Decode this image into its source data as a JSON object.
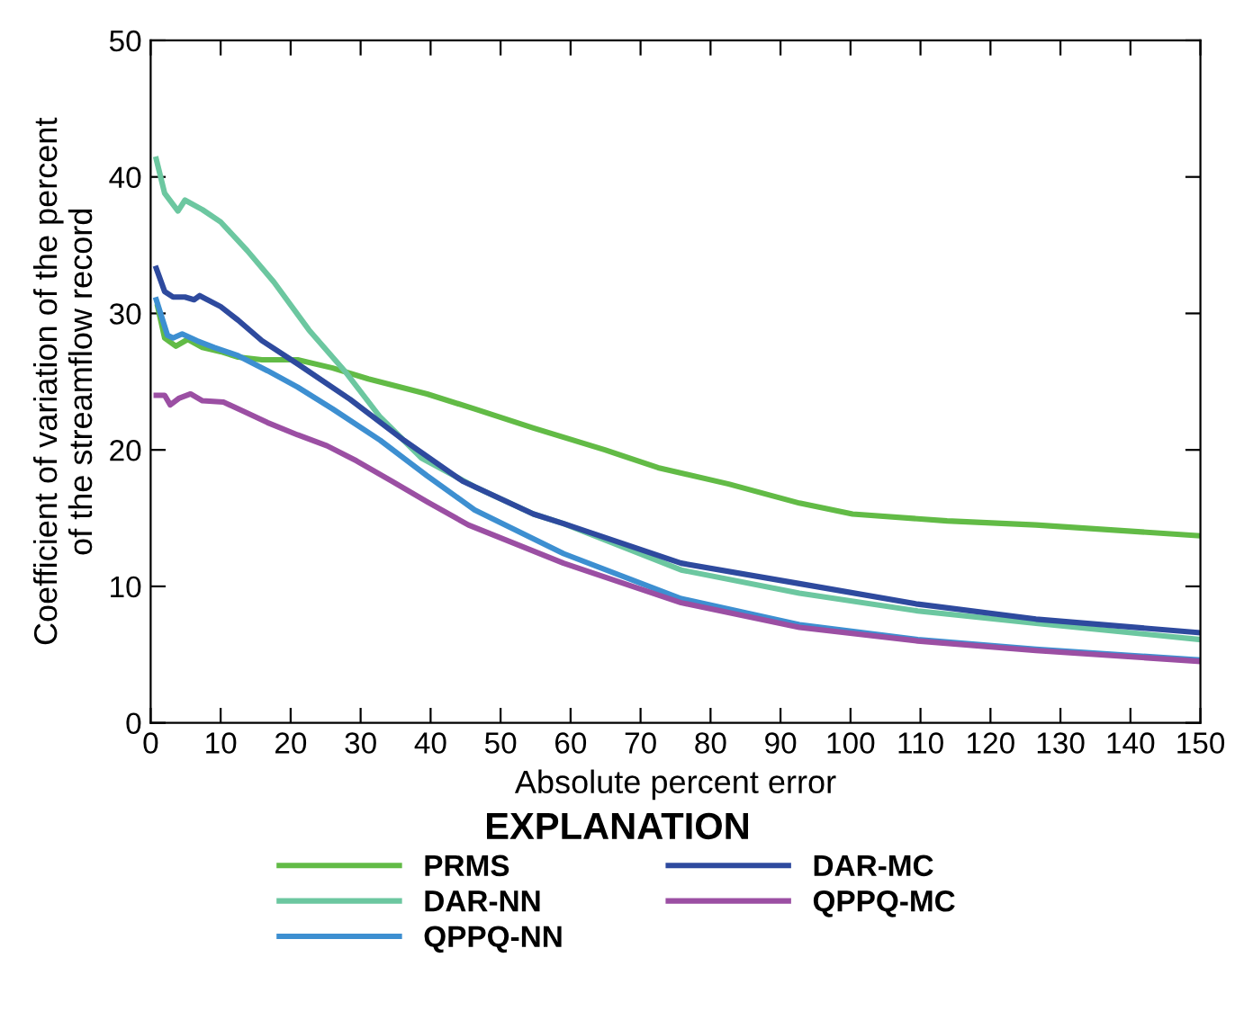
{
  "chart_data": {
    "type": "line",
    "xlabel": "Absolute percent error",
    "ylabel": "Coefficient of variation of the percent\nof the streamflow record",
    "legend_title": "EXPLANATION",
    "legend": "bottom",
    "grid": false,
    "marker": "none",
    "line_style": "solid",
    "xlim": [
      0,
      150
    ],
    "ylim": [
      0,
      50
    ],
    "xticks": [
      0,
      10,
      20,
      30,
      40,
      50,
      60,
      70,
      80,
      90,
      100,
      110,
      120,
      130,
      140,
      150
    ],
    "yticks": [
      0,
      10,
      20,
      30,
      40,
      50
    ],
    "series": [
      {
        "name": "PRMS",
        "color": "#62bb46",
        "x": [
          1,
          2,
          3.6,
          5.3,
          7.4,
          10,
          12.5,
          15.9,
          21,
          26,
          31.1,
          39.5,
          46.3,
          54.7,
          64.9,
          72.5,
          82.6,
          92.7,
          100.3,
          113.8,
          126.5,
          150
        ],
        "values": [
          30.5,
          28.2,
          27.6,
          28.1,
          27.5,
          27.2,
          26.8,
          26.6,
          26.6,
          26.0,
          25.2,
          24.1,
          23.0,
          21.6,
          20.0,
          18.7,
          17.5,
          16.1,
          15.3,
          14.8,
          14.5,
          13.7
        ]
      },
      {
        "name": "DAR-NN",
        "color": "#6cc7a0",
        "x": [
          0.8,
          2,
          3.9,
          4.9,
          7.4,
          10,
          13.8,
          17.6,
          22.6,
          27.7,
          32.8,
          38.7,
          46.3,
          54.7,
          59,
          75.8,
          92.7,
          109.6,
          126.5,
          150
        ],
        "values": [
          41.3,
          38.8,
          37.5,
          38.3,
          37.6,
          36.7,
          34.6,
          32.3,
          28.8,
          25.8,
          22.4,
          19.4,
          17.3,
          15.3,
          14.6,
          11.2,
          9.5,
          8.2,
          7.3,
          6.1
        ]
      },
      {
        "name": "QPPQ-NN",
        "color": "#3d8fd1",
        "x": [
          0.8,
          2.4,
          3.2,
          4.5,
          6.6,
          9.1,
          12.5,
          16.7,
          21,
          26,
          32.8,
          39.5,
          46.3,
          59,
          75.8,
          92.7,
          109.6,
          126.5,
          150
        ],
        "values": [
          31.0,
          28.4,
          28.2,
          28.5,
          28.0,
          27.5,
          26.9,
          25.8,
          24.6,
          23.0,
          20.7,
          18.1,
          15.6,
          12.4,
          9.1,
          7.2,
          6.1,
          5.4,
          4.6
        ]
      },
      {
        "name": "DAR-MC",
        "color": "#2e4a9e",
        "x": [
          0.8,
          2,
          3.2,
          4.9,
          6.2,
          7,
          10,
          12.5,
          15.9,
          21,
          28.5,
          36.2,
          44.6,
          54.7,
          59,
          75.8,
          92.7,
          109.6,
          126.5,
          150
        ],
        "values": [
          33.3,
          31.6,
          31.2,
          31.2,
          31.0,
          31.3,
          30.5,
          29.5,
          28.0,
          26.3,
          23.7,
          20.7,
          17.7,
          15.3,
          14.6,
          11.7,
          10.2,
          8.7,
          7.6,
          6.6
        ]
      },
      {
        "name": "QPPQ-MC",
        "color": "#9b4fa3",
        "x": [
          0.8,
          2,
          2.8,
          4.1,
          5.7,
          7.4,
          10.4,
          13.4,
          16.7,
          21,
          25.2,
          29.4,
          34.5,
          39.5,
          45.4,
          59,
          75.8,
          92.7,
          109.6,
          126.5,
          150
        ],
        "values": [
          24.0,
          24.0,
          23.3,
          23.8,
          24.1,
          23.6,
          23.5,
          22.8,
          22.0,
          21.1,
          20.3,
          19.2,
          17.7,
          16.2,
          14.5,
          11.7,
          8.8,
          7.0,
          6.0,
          5.3,
          4.5
        ]
      }
    ]
  }
}
